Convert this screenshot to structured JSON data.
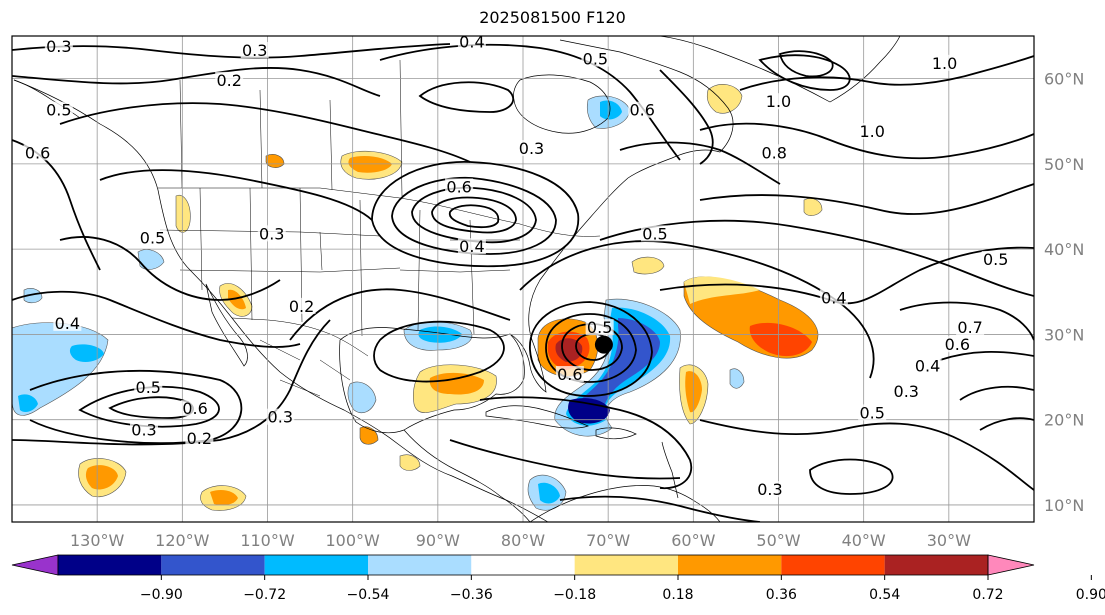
{
  "title": "2025081500 F120",
  "map": {
    "lat_labels": [
      "60°N",
      "50°N",
      "40°N",
      "30°N",
      "20°N",
      "10°N"
    ],
    "lon_labels": [
      "130°W",
      "120°W",
      "110°W",
      "100°W",
      "90°W",
      "80°W",
      "70°W",
      "60°W",
      "50°W",
      "40°W",
      "30°W"
    ],
    "grid": true,
    "storm_marker": {
      "lon": -70.5,
      "lat": 28.8,
      "color": "#000000"
    },
    "contour_labels": [
      {
        "text": "0.3",
        "lon": -134.5,
        "lat": 63.5
      },
      {
        "text": "0.3",
        "lon": -111.5,
        "lat": 63.0
      },
      {
        "text": "0.2",
        "lon": -114.5,
        "lat": 59.5
      },
      {
        "text": "0.4",
        "lon": -86.0,
        "lat": 64.0
      },
      {
        "text": "0.5",
        "lon": -71.5,
        "lat": 62.0
      },
      {
        "text": "0.5",
        "lon": -134.5,
        "lat": 56.0
      },
      {
        "text": "0.6",
        "lon": -137.0,
        "lat": 51.0
      },
      {
        "text": "0.3",
        "lon": -79.0,
        "lat": 51.5
      },
      {
        "text": "0.6",
        "lon": -87.5,
        "lat": 47.0
      },
      {
        "text": "0.4",
        "lon": -86.0,
        "lat": 40.0
      },
      {
        "text": "0.5",
        "lon": -123.5,
        "lat": 41.0
      },
      {
        "text": "0.3",
        "lon": -109.5,
        "lat": 41.5
      },
      {
        "text": "0.2",
        "lon": -106.0,
        "lat": 33.0
      },
      {
        "text": "0.4",
        "lon": -133.5,
        "lat": 31.0
      },
      {
        "text": "0.5",
        "lon": -124.0,
        "lat": 23.5
      },
      {
        "text": "0.6",
        "lon": -118.5,
        "lat": 21.0
      },
      {
        "text": "0.3",
        "lon": -124.5,
        "lat": 18.5
      },
      {
        "text": "0.2",
        "lon": -118.0,
        "lat": 17.5
      },
      {
        "text": "0.3",
        "lon": -108.5,
        "lat": 20.0
      },
      {
        "text": "0.5",
        "lon": -71.0,
        "lat": 30.5
      },
      {
        "text": "0.6",
        "lon": -74.5,
        "lat": 25.0
      },
      {
        "text": "0.5",
        "lon": -64.5,
        "lat": 41.5
      },
      {
        "text": "0.4",
        "lon": -43.5,
        "lat": 34.0
      },
      {
        "text": "0.6",
        "lon": -66.0,
        "lat": 56.0
      },
      {
        "text": "1.0",
        "lon": -50.0,
        "lat": 57.0
      },
      {
        "text": "1.0",
        "lon": -30.5,
        "lat": 61.5
      },
      {
        "text": "0.8",
        "lon": -50.5,
        "lat": 51.0
      },
      {
        "text": "1.0",
        "lon": -39.0,
        "lat": 53.5
      },
      {
        "text": "0.5",
        "lon": -24.5,
        "lat": 38.5
      },
      {
        "text": "0.7",
        "lon": -27.5,
        "lat": 30.5
      },
      {
        "text": "0.6",
        "lon": -29.0,
        "lat": 28.5
      },
      {
        "text": "0.4",
        "lon": -32.5,
        "lat": 26.0
      },
      {
        "text": "0.3",
        "lon": -35.0,
        "lat": 23.0
      },
      {
        "text": "0.5",
        "lon": -39.0,
        "lat": 20.5
      },
      {
        "text": "0.3",
        "lon": -51.0,
        "lat": 11.5
      }
    ]
  },
  "colorbar": {
    "labels": [
      "−0.90",
      "−0.72",
      "−0.54",
      "−0.36",
      "−0.18",
      "0.18",
      "0.36",
      "0.54",
      "0.72",
      "0.90"
    ],
    "colors": [
      "#9933cc",
      "#000088",
      "#3355cc",
      "#00bbff",
      "#aaddff",
      "#ffffff",
      "#ffe680",
      "#ff9900",
      "#ff4400",
      "#aa2222",
      "#ff88bb"
    ]
  }
}
